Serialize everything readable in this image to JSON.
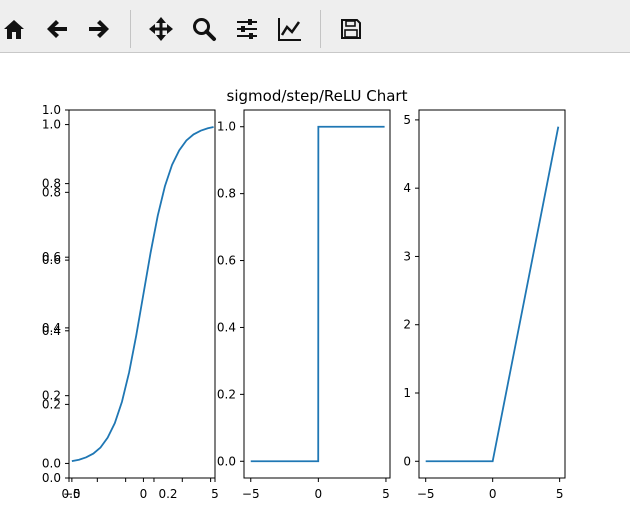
{
  "toolbar": {
    "icons": [
      "home-icon",
      "back-arrow-icon",
      "forward-arrow-icon",
      "pan-move-icon",
      "zoom-magnifier-icon",
      "configure-subplots-icon",
      "edit-axis-icon",
      "save-floppy-icon"
    ]
  },
  "figure": {
    "title": "sigmod/step/ReLU Chart",
    "line_color": "#1f77b4"
  },
  "chart_data": [
    {
      "type": "line",
      "function": "sigmoid",
      "x": [
        -5,
        -4.5,
        -4,
        -3.5,
        -3,
        -2.5,
        -2,
        -1.5,
        -1,
        -0.5,
        0,
        0.5,
        1,
        1.5,
        2,
        2.5,
        3,
        3.5,
        4,
        4.5,
        4.9
      ],
      "y": [
        0.0067,
        0.011,
        0.018,
        0.029,
        0.047,
        0.076,
        0.119,
        0.182,
        0.269,
        0.378,
        0.5,
        0.622,
        0.731,
        0.818,
        0.881,
        0.924,
        0.953,
        0.971,
        0.982,
        0.989,
        0.993
      ],
      "xlim": [
        -5.2,
        5.0
      ],
      "ylim": [
        -0.043,
        1.043
      ],
      "overlapping_twin_axes": {
        "x_ticks": [
          "0.0",
          "0.2",
          "0.4",
          "0.6",
          "0.8",
          "1.0"
        ],
        "y_ticks": [
          "0.0",
          "0.2",
          "0.4",
          "0.6",
          "0.8",
          "1.0"
        ]
      },
      "xticks": [
        {
          "value": -5,
          "label": "−5"
        },
        {
          "value": 0,
          "label": "0"
        },
        {
          "value": 5,
          "label": "5"
        }
      ],
      "yticks": [
        {
          "value": 0.0,
          "label": "0.0"
        },
        {
          "value": 0.2,
          "label": "0.2"
        },
        {
          "value": 0.4,
          "label": "0.4"
        },
        {
          "value": 0.6,
          "label": "0.6"
        },
        {
          "value": 0.8,
          "label": "0.8"
        },
        {
          "value": 1.0,
          "label": "1.0"
        }
      ]
    },
    {
      "type": "line",
      "function": "step",
      "x": [
        -5,
        -0.01,
        0,
        4.9
      ],
      "y": [
        0,
        0,
        1,
        1
      ],
      "xlim": [
        -5.5,
        5.3
      ],
      "ylim": [
        -0.05,
        1.05
      ],
      "xticks": [
        {
          "value": -5,
          "label": "−5"
        },
        {
          "value": 0,
          "label": "0"
        },
        {
          "value": 5,
          "label": "5"
        }
      ],
      "yticks": [
        {
          "value": 0.0,
          "label": "0.0"
        },
        {
          "value": 0.2,
          "label": "0.2"
        },
        {
          "value": 0.4,
          "label": "0.4"
        },
        {
          "value": 0.6,
          "label": "0.6"
        },
        {
          "value": 0.8,
          "label": "0.8"
        },
        {
          "value": 1.0,
          "label": "1.0"
        }
      ]
    },
    {
      "type": "line",
      "function": "ReLU",
      "x": [
        -5,
        0,
        4.9
      ],
      "y": [
        0,
        0,
        4.9
      ],
      "xlim": [
        -5.5,
        5.4
      ],
      "ylim": [
        -0.245,
        5.145
      ],
      "xticks": [
        {
          "value": -5,
          "label": "−5"
        },
        {
          "value": 0,
          "label": "0"
        },
        {
          "value": 5,
          "label": "5"
        }
      ],
      "yticks": [
        {
          "value": 0,
          "label": "0"
        },
        {
          "value": 1,
          "label": "1"
        },
        {
          "value": 2,
          "label": "2"
        },
        {
          "value": 3,
          "label": "3"
        },
        {
          "value": 4,
          "label": "4"
        },
        {
          "value": 5,
          "label": "5"
        }
      ]
    }
  ]
}
